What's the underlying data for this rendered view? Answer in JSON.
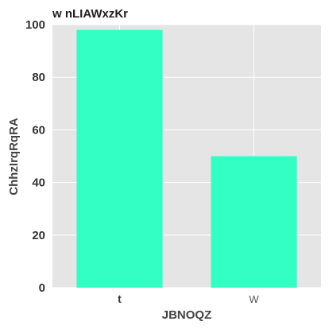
{
  "colors": {
    "bar": "#33ffc4",
    "plot_bg": "#e5e5e5",
    "grid": "#ffffff"
  },
  "chart_data": {
    "type": "bar",
    "title": "w nLIAWxzKr",
    "xlabel": "JBNOQZ",
    "ylabel": "ChhzIrqRqRA",
    "categories": [
      "t",
      "W"
    ],
    "values": [
      98,
      50
    ],
    "ylim": [
      0,
      100
    ],
    "yticks": [
      0,
      20,
      40,
      60,
      80,
      100
    ],
    "grid": true
  }
}
